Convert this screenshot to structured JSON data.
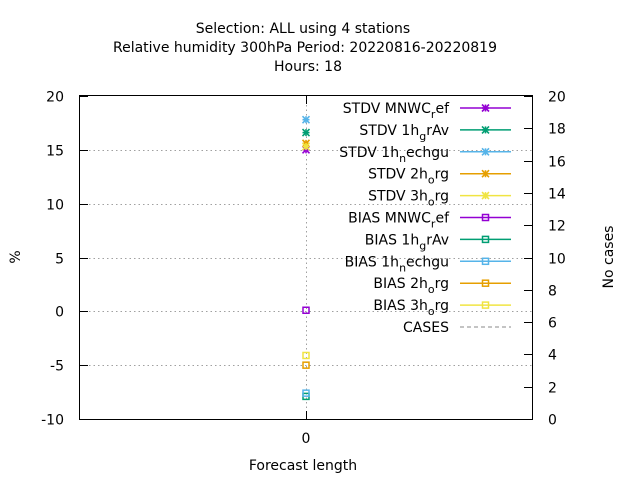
{
  "chart_data": {
    "type": "scatter",
    "title_lines": [
      "Selection: ALL using     4 stations",
      "Relative humidity 300hPa   Period: 20220816-20220819",
      "Hours:  18"
    ],
    "xlabel": "Forecast length",
    "ylabel": "%",
    "y2label": "No cases",
    "x_ticks": [
      "0"
    ],
    "y_ticks": [
      -10,
      -5,
      0,
      5,
      10,
      15,
      20
    ],
    "y2_ticks": [
      0,
      2,
      4,
      6,
      8,
      10,
      12,
      14,
      16,
      18,
      20
    ],
    "ylim": [
      -10,
      20
    ],
    "y2lim": [
      0,
      20
    ],
    "grid": true,
    "legend_position": "top-right",
    "series": [
      {
        "name": "STDV MNWC_ref",
        "label": "STDV MNWC",
        "sub": "r",
        "tail": "ef",
        "color": "#9400d3",
        "marker": "star",
        "x": 0,
        "y": 15.0
      },
      {
        "name": "STDV 1h_grAv",
        "label": "STDV 1h",
        "sub": "g",
        "tail": "rAv",
        "color": "#009e73",
        "marker": "star",
        "x": 0,
        "y": 16.6
      },
      {
        "name": "STDV 1h_nechgu",
        "label": "STDV 1h",
        "sub": "n",
        "tail": "echgu",
        "color": "#56b4e9",
        "marker": "star",
        "x": 0,
        "y": 17.8
      },
      {
        "name": "STDV 2h_org",
        "label": "STDV 2h",
        "sub": "o",
        "tail": "rg",
        "color": "#e69f00",
        "marker": "star",
        "x": 0,
        "y": 15.6
      },
      {
        "name": "STDV 3h_org",
        "label": "STDV 3h",
        "sub": "o",
        "tail": "rg",
        "color": "#f0e442",
        "marker": "star",
        "x": 0,
        "y": 15.3
      },
      {
        "name": "BIAS MNWC_ref",
        "label": "BIAS MNWC",
        "sub": "r",
        "tail": "ef",
        "color": "#9400d3",
        "marker": "square",
        "x": 0,
        "y": 0.1
      },
      {
        "name": "BIAS 1h_grAv",
        "label": "BIAS 1h",
        "sub": "g",
        "tail": "rAv",
        "color": "#009e73",
        "marker": "square",
        "x": 0,
        "y": -7.9
      },
      {
        "name": "BIAS 1h_nechgu",
        "label": "BIAS 1h",
        "sub": "n",
        "tail": "echgu",
        "color": "#56b4e9",
        "marker": "square",
        "x": 0,
        "y": -7.6
      },
      {
        "name": "BIAS 2h_org",
        "label": "BIAS 2h",
        "sub": "o",
        "tail": "rg",
        "color": "#e69f00",
        "marker": "square",
        "x": 0,
        "y": -5.0
      },
      {
        "name": "BIAS 3h_org",
        "label": "BIAS 3h",
        "sub": "o",
        "tail": "rg",
        "color": "#f0e442",
        "marker": "square",
        "x": 0,
        "y": -4.1
      },
      {
        "name": "CASES",
        "label": "CASES",
        "sub": "",
        "tail": "",
        "color": "#a0a0a0",
        "marker": "dashed",
        "x": 0,
        "y": null
      }
    ]
  }
}
